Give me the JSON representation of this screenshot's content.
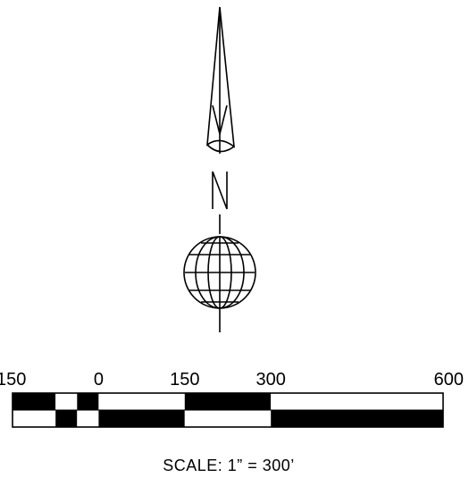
{
  "north_arrow": {
    "letter": "N",
    "icon": "north-arrow-icon",
    "globe_icon": "globe-icon"
  },
  "scale_bar": {
    "tick_labels": [
      "150",
      "0",
      "150",
      "300",
      "600"
    ],
    "tick_values": [
      -150,
      0,
      150,
      300,
      600
    ],
    "scale_text": "SCALE:  1”  =  300’",
    "unit_feet_per_inch": 300,
    "segments": [
      {
        "from": -150,
        "to": -75,
        "top": "black",
        "bottom": "white"
      },
      {
        "from": -75,
        "to": -37.5,
        "top": "white",
        "bottom": "black"
      },
      {
        "from": -37.5,
        "to": 0,
        "top": "black",
        "bottom": "white"
      },
      {
        "from": 0,
        "to": 150,
        "top": "white",
        "bottom": "black"
      },
      {
        "from": 150,
        "to": 300,
        "top": "black",
        "bottom": "white"
      },
      {
        "from": 300,
        "to": 600,
        "top": "white",
        "bottom": "black"
      }
    ],
    "colors": {
      "black": "#000000",
      "white": "#ffffff"
    }
  }
}
